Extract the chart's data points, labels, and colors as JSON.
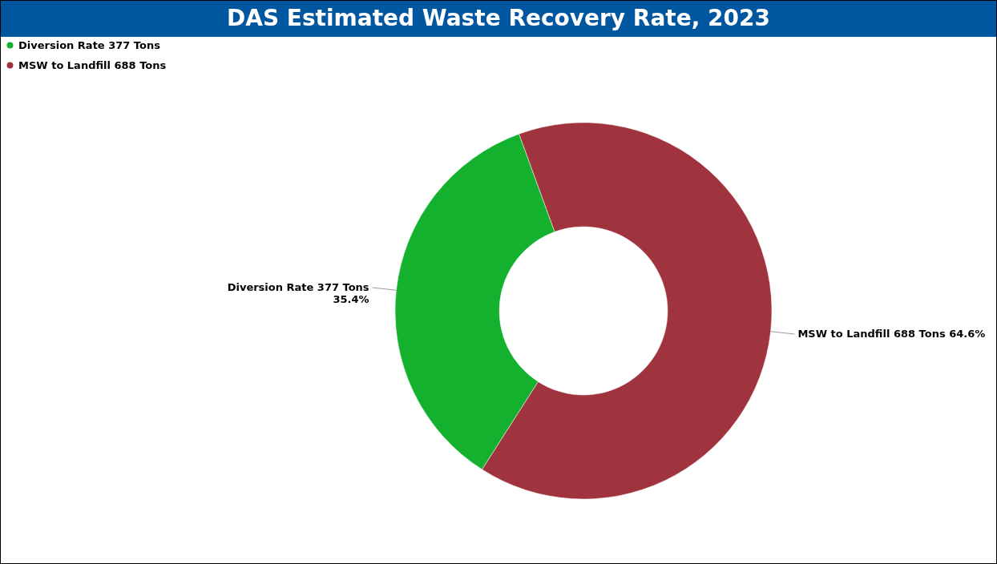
{
  "chart_data": {
    "type": "donut",
    "title": "DAS Estimated Waste Recovery Rate, 2023",
    "categories": [
      "Diversion Rate 377 Tons",
      "MSW to Landfill  688 Tons"
    ],
    "values": [
      35.4,
      64.6
    ],
    "colors": [
      "#13b12e",
      "#a0343e"
    ],
    "value_labels": [
      "35.4%",
      "64.6%"
    ],
    "legend": "top left"
  }
}
